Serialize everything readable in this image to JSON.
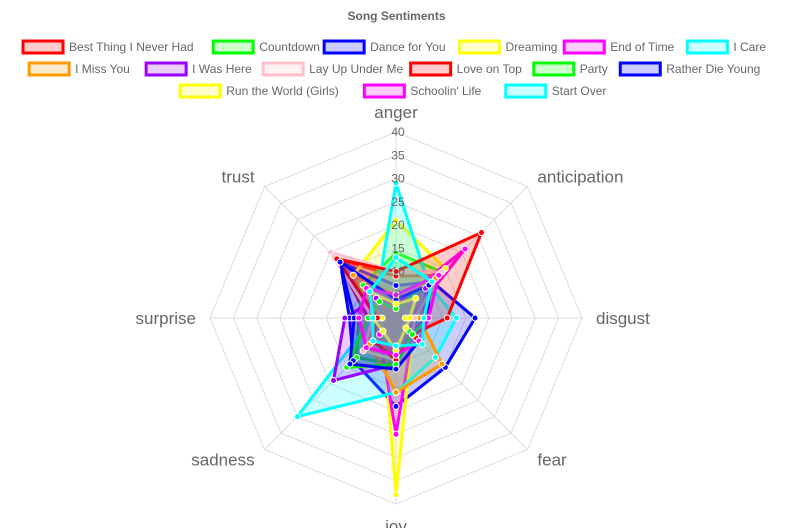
{
  "chart_data": {
    "type": "radar",
    "title": "Song Sentiments",
    "axes": [
      "anger",
      "anticipation",
      "disgust",
      "fear",
      "joy",
      "sadness",
      "surprise",
      "trust"
    ],
    "r_range": [
      0,
      40
    ],
    "r_ticks": [
      5,
      10,
      15,
      20,
      25,
      30,
      35,
      40
    ],
    "r_tick_labels": [
      "5",
      "10",
      "15",
      "20",
      "25",
      "30",
      "35",
      "40"
    ],
    "grid": true,
    "legend_position": "top",
    "series": [
      {
        "name": "Best Thing I Never Had",
        "color": "#ff0000",
        "fill": "rgba(255,0,0,0.2)",
        "values": [
          9,
          13,
          4,
          6,
          8,
          7,
          6,
          18
        ]
      },
      {
        "name": "Countdown",
        "color": "#00ff00",
        "fill": "rgba(0,255,0,0.2)",
        "values": [
          14,
          14,
          5,
          4,
          10,
          12,
          8,
          10
        ]
      },
      {
        "name": "Dance for You",
        "color": "#0000ff",
        "fill": "rgba(0,0,255,0.2)",
        "values": [
          7,
          11,
          17,
          15,
          19,
          13,
          10,
          17
        ]
      },
      {
        "name": "Dreaming",
        "color": "#ffff00",
        "fill": "rgba(255,255,0,0.2)",
        "values": [
          21,
          15,
          2,
          5,
          38,
          4,
          3,
          13
        ]
      },
      {
        "name": "End of Time",
        "color": "#ff00ff",
        "fill": "rgba(255,0,255,0.2)",
        "values": [
          3,
          21,
          3,
          5,
          25,
          5,
          4,
          8
        ]
      },
      {
        "name": "I Care",
        "color": "#00ffff",
        "fill": "rgba(0,255,255,0.2)",
        "values": [
          29,
          10,
          13,
          12,
          16,
          30,
          5,
          6
        ]
      },
      {
        "name": "I Miss You",
        "color": "#ff9900",
        "fill": "rgba(255,153,0,0.2)",
        "values": [
          5,
          12,
          5,
          14,
          16,
          8,
          5,
          13
        ]
      },
      {
        "name": "I Was Here",
        "color": "#9900ff",
        "fill": "rgba(153,0,255,0.2)",
        "values": [
          3,
          9,
          6,
          5,
          10,
          19,
          11,
          6
        ]
      },
      {
        "name": "Lay Up Under Me",
        "color": "#ffc0cb",
        "fill": "rgba(255,192,203,0.2)",
        "values": [
          10,
          14,
          4,
          5,
          9,
          10,
          5,
          20
        ]
      },
      {
        "name": "Love on Top",
        "color": "#ff0000",
        "fill": "rgba(255,0,0,0.2)",
        "values": [
          10,
          26,
          11,
          5,
          9,
          7,
          4,
          18
        ]
      },
      {
        "name": "Party",
        "color": "#00ff00",
        "fill": "rgba(0,255,0,0.2)",
        "values": [
          2,
          13,
          7,
          5,
          10,
          15,
          6,
          5
        ]
      },
      {
        "name": "Rather Die Young",
        "color": "#0000ff",
        "fill": "rgba(0,0,255,0.2)",
        "values": [
          4,
          10,
          7,
          7,
          11,
          14,
          9,
          17
        ]
      },
      {
        "name": "Run the World (Girls)",
        "color": "#ffff00",
        "fill": "rgba(255,255,0,0.2)",
        "values": [
          3,
          6,
          3,
          3,
          7,
          4,
          5,
          8
        ]
      },
      {
        "name": "Schoolin' Life",
        "color": "#ff00ff",
        "fill": "rgba(255,0,255,0.2)",
        "values": [
          5,
          13,
          7,
          7,
          8,
          9,
          8,
          9
        ]
      },
      {
        "name": "Start Over",
        "color": "#00ffff",
        "fill": "rgba(0,255,255,0.2)",
        "values": [
          13,
          11,
          6,
          8,
          6,
          7,
          5,
          8
        ]
      }
    ]
  }
}
